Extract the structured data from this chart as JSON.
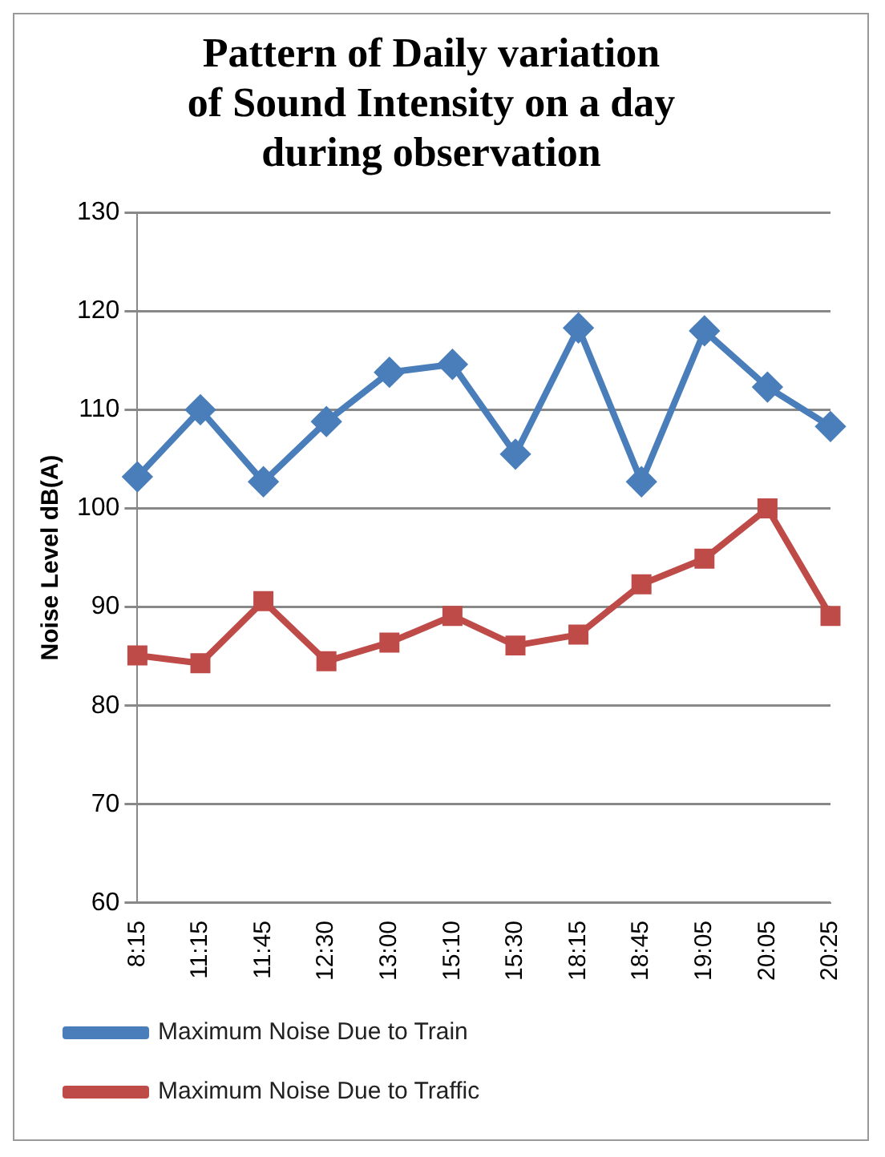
{
  "chart_data": {
    "type": "line",
    "title": "Pattern of Daily variation of Sound Intensity on a day during observation",
    "ylabel": "Noise Level dB(A)",
    "categories": [
      "8:15",
      "11:15",
      "11:45",
      "12:30",
      "13:00",
      "15:10",
      "15:30",
      "18:15",
      "18:45",
      "19:05",
      "20:05",
      "20:25"
    ],
    "series": [
      {
        "name": "Maximum Noise Due to Train",
        "color": "#4a7ebb",
        "marker": "diamond",
        "values": [
          103.2,
          110.0,
          102.7,
          108.8,
          113.8,
          114.6,
          105.5,
          118.3,
          102.7,
          118.0,
          112.3,
          108.3
        ]
      },
      {
        "name": "Maximum Noise Due to Traffic",
        "color": "#be4b48",
        "marker": "square",
        "values": [
          85.1,
          84.3,
          90.6,
          84.5,
          86.4,
          89.1,
          86.1,
          87.2,
          92.3,
          94.9,
          100.0,
          89.1
        ]
      }
    ],
    "ylim": [
      60,
      130
    ],
    "yticks": [
      60,
      70,
      80,
      90,
      100,
      110,
      120,
      130
    ],
    "grid": "y",
    "legend": "bottom",
    "line_style": "solid"
  }
}
